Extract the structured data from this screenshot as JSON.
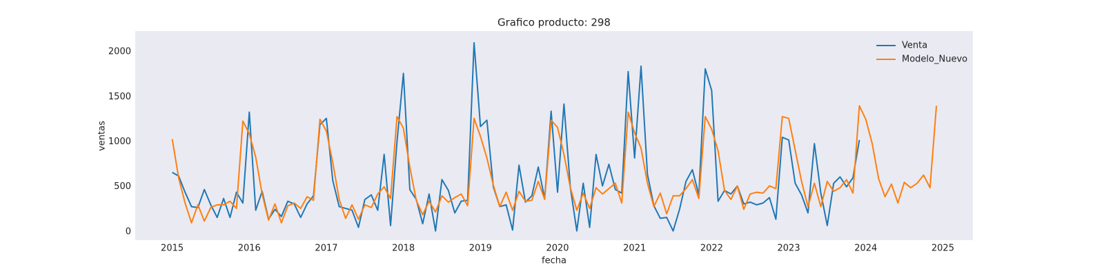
{
  "chart_data": {
    "type": "line",
    "title": "Grafico producto: 298",
    "xlabel": "fecha",
    "ylabel": "ventas",
    "x": [
      "2015-01",
      "2015-02",
      "2015-03",
      "2015-04",
      "2015-05",
      "2015-06",
      "2015-07",
      "2015-08",
      "2015-09",
      "2015-10",
      "2015-11",
      "2015-12",
      "2016-01",
      "2016-02",
      "2016-03",
      "2016-04",
      "2016-05",
      "2016-06",
      "2016-07",
      "2016-08",
      "2016-09",
      "2016-10",
      "2016-11",
      "2016-12",
      "2017-01",
      "2017-02",
      "2017-03",
      "2017-04",
      "2017-05",
      "2017-06",
      "2017-07",
      "2017-08",
      "2017-09",
      "2017-10",
      "2017-11",
      "2017-12",
      "2018-01",
      "2018-02",
      "2018-03",
      "2018-04",
      "2018-05",
      "2018-06",
      "2018-07",
      "2018-08",
      "2018-09",
      "2018-10",
      "2018-11",
      "2018-12",
      "2019-01",
      "2019-02",
      "2019-03",
      "2019-04",
      "2019-05",
      "2019-06",
      "2019-07",
      "2019-08",
      "2019-09",
      "2019-10",
      "2019-11",
      "2019-12",
      "2020-01",
      "2020-02",
      "2020-03",
      "2020-04",
      "2020-05",
      "2020-06",
      "2020-07",
      "2020-08",
      "2020-09",
      "2020-10",
      "2020-11",
      "2020-12",
      "2021-01",
      "2021-02",
      "2021-03",
      "2021-04",
      "2021-05",
      "2021-06",
      "2021-07",
      "2021-08",
      "2021-09",
      "2021-10",
      "2021-11",
      "2021-12",
      "2022-01",
      "2022-02",
      "2022-03",
      "2022-04",
      "2022-05",
      "2022-06",
      "2022-07",
      "2022-08",
      "2022-09",
      "2022-10",
      "2022-11",
      "2022-12",
      "2023-01",
      "2023-02",
      "2023-03",
      "2023-04",
      "2023-05",
      "2023-06",
      "2023-07",
      "2023-08",
      "2023-09",
      "2023-10",
      "2023-11",
      "2023-12",
      "2024-01",
      "2024-02",
      "2024-03",
      "2024-04",
      "2024-05",
      "2024-06",
      "2024-07",
      "2024-08",
      "2024-09",
      "2024-10",
      "2024-11",
      "2024-12"
    ],
    "series": [
      {
        "name": "Venta",
        "color": "#1f77b4",
        "values": [
          660,
          620,
          440,
          280,
          270,
          470,
          300,
          160,
          370,
          160,
          440,
          320,
          1330,
          240,
          450,
          140,
          250,
          170,
          340,
          310,
          160,
          310,
          400,
          1190,
          1260,
          570,
          280,
          260,
          240,
          50,
          360,
          410,
          240,
          860,
          70,
          1000,
          1760,
          470,
          360,
          90,
          420,
          10,
          580,
          460,
          210,
          340,
          350,
          2100,
          1170,
          1240,
          500,
          280,
          300,
          20,
          740,
          330,
          400,
          720,
          370,
          1340,
          440,
          1420,
          490,
          10,
          540,
          50,
          860,
          510,
          750,
          470,
          430,
          1780,
          820,
          1840,
          640,
          290,
          150,
          160,
          10,
          250,
          560,
          690,
          410,
          1810,
          1570,
          340,
          460,
          420,
          510,
          310,
          330,
          300,
          320,
          380,
          140,
          1050,
          1020,
          540,
          410,
          210,
          980,
          430,
          70,
          540,
          610,
          500,
          600,
          1020,
          null,
          null,
          null,
          null,
          null,
          null,
          null,
          null,
          null,
          null,
          null,
          null
        ]
      },
      {
        "name": "Modelo_Nuevo",
        "color": "#ff7f0e",
        "values": [
          1030,
          600,
          320,
          100,
          300,
          120,
          270,
          300,
          300,
          340,
          260,
          1230,
          1090,
          830,
          420,
          130,
          310,
          100,
          290,
          320,
          260,
          390,
          350,
          1250,
          1120,
          770,
          360,
          150,
          300,
          140,
          300,
          270,
          420,
          500,
          370,
          1280,
          1150,
          720,
          350,
          190,
          340,
          220,
          400,
          330,
          380,
          420,
          290,
          1260,
          1060,
          820,
          520,
          280,
          440,
          240,
          450,
          340,
          350,
          560,
          360,
          1240,
          1160,
          860,
          490,
          240,
          430,
          260,
          490,
          420,
          480,
          540,
          320,
          1330,
          1100,
          930,
          540,
          280,
          430,
          200,
          400,
          400,
          480,
          580,
          370,
          1280,
          1140,
          900,
          460,
          360,
          510,
          250,
          420,
          440,
          430,
          510,
          480,
          1280,
          1260,
          910,
          560,
          280,
          540,
          280,
          560,
          450,
          490,
          580,
          430,
          1400,
          1250,
          980,
          590,
          390,
          530,
          320,
          550,
          490,
          540,
          630,
          490,
          1400
        ]
      }
    ],
    "xlim": [
      2014.52,
      2025.39
    ],
    "xticks": [
      2015,
      2016,
      2017,
      2018,
      2019,
      2020,
      2021,
      2022,
      2023,
      2024,
      2025
    ],
    "ylim": [
      -92,
      2230
    ],
    "yticks": [
      0,
      500,
      1000,
      1500,
      2000
    ],
    "grid": false,
    "legend": "upper right"
  }
}
